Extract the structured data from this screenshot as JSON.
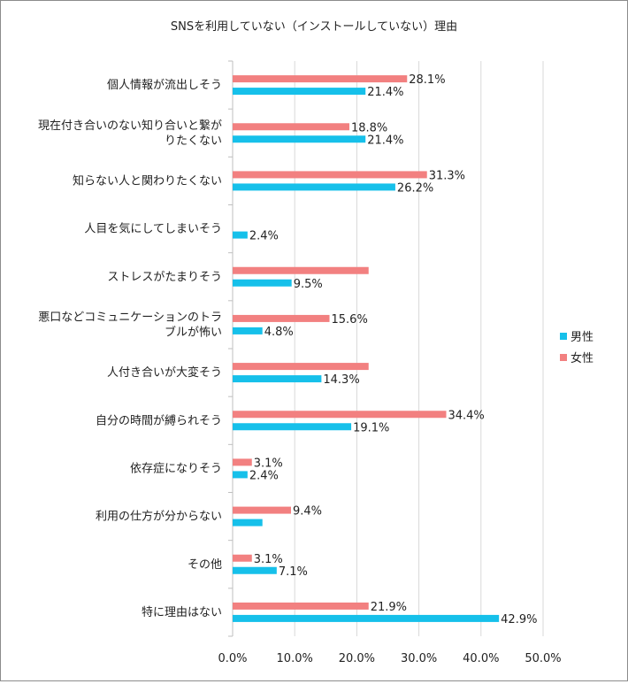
{
  "chart_data": {
    "type": "bar",
    "orientation": "horizontal",
    "title": "SNSを利用していない（インストールしていない）理由",
    "categories": [
      "個人情報が流出しそう",
      "現在付き合いのない知り合いと繋がりたくない",
      "知らない人と関わりたくない",
      "人目を気にしてしまいそう",
      "ストレスがたまりそう",
      "悪口などコミュニケーションのトラブルが怖い",
      "人付き合いが大変そう",
      "自分の時間が縛られそう",
      "依存症になりそう",
      "利用の仕方が分からない",
      "その他",
      "特に理由はない"
    ],
    "category_lines": [
      [
        "個人情報が流出しそう"
      ],
      [
        "現在付き合いのない知り合いと繋が",
        "りたくない"
      ],
      [
        "知らない人と関わりたくない"
      ],
      [
        "人目を気にしてしまいそう"
      ],
      [
        "ストレスがたまりそう"
      ],
      [
        "悪口などコミュニケーションのトラ",
        "ブルが怖い"
      ],
      [
        "人付き合いが大変そう"
      ],
      [
        "自分の時間が縛られそう"
      ],
      [
        "依存症になりそう"
      ],
      [
        "利用の仕方が分からない"
      ],
      [
        "その他"
      ],
      [
        "特に理由はない"
      ]
    ],
    "series": [
      {
        "name": "女性",
        "color": "#f28080",
        "values": [
          28.1,
          18.8,
          31.3,
          null,
          21.9,
          15.6,
          21.9,
          34.4,
          3.1,
          9.4,
          3.1,
          21.9
        ],
        "labels": [
          "28.1%",
          "18.8%",
          "31.3%",
          "",
          "",
          "15.6%",
          "",
          "34.4%",
          "3.1%",
          "9.4%",
          "3.1%",
          "21.9%"
        ]
      },
      {
        "name": "男性",
        "color": "#16c0ea",
        "values": [
          21.4,
          21.4,
          26.2,
          2.4,
          9.5,
          4.8,
          14.3,
          19.1,
          2.4,
          4.8,
          7.1,
          42.9
        ],
        "labels": [
          "21.4%",
          "21.4%",
          "26.2%",
          "2.4%",
          "9.5%",
          "4.8%",
          "14.3%",
          "19.1%",
          "2.4%",
          "",
          "7.1%",
          "42.9%"
        ]
      }
    ],
    "xlim": [
      0,
      50
    ],
    "xticks": [
      "0.0%",
      "10.0%",
      "20.0%",
      "30.0%",
      "40.0%",
      "50.0%"
    ],
    "legend": {
      "position": "right",
      "items": [
        {
          "label": "男性",
          "color": "#16c0ea"
        },
        {
          "label": "女性",
          "color": "#f28080"
        }
      ]
    },
    "grid": true,
    "xlabel": "",
    "ylabel": ""
  }
}
